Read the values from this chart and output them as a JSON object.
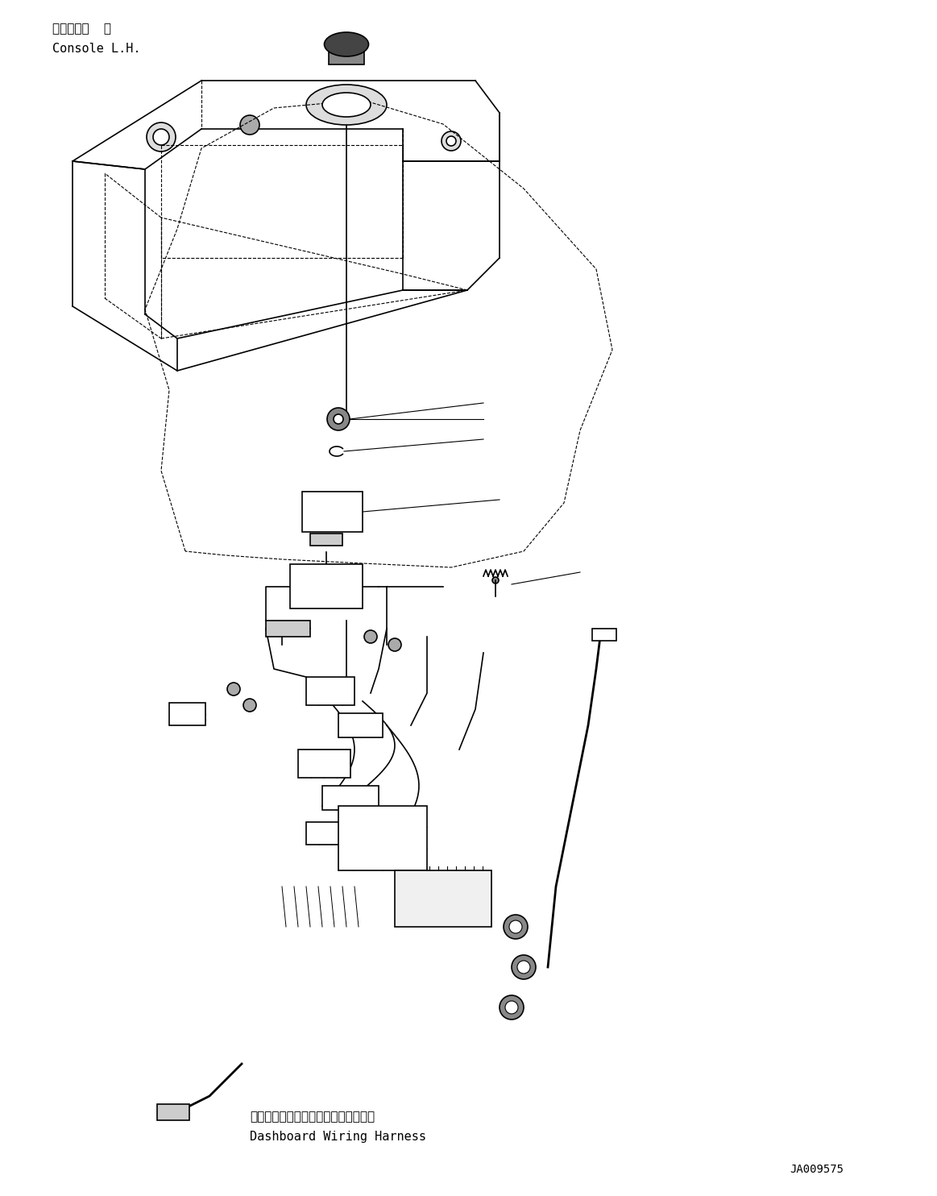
{
  "bg_color": "#ffffff",
  "line_color": "#000000",
  "text_color": "#000000",
  "label_top_jp": "コンソール  左",
  "label_top_en": "Console L.H.",
  "label_bottom_jp": "ダッシュボードワイヤリングハーネス",
  "label_bottom_en": "Dashboard Wiring Harness",
  "part_number": "JA009575",
  "figsize": [
    11.63,
    14.84
  ],
  "dpi": 100
}
